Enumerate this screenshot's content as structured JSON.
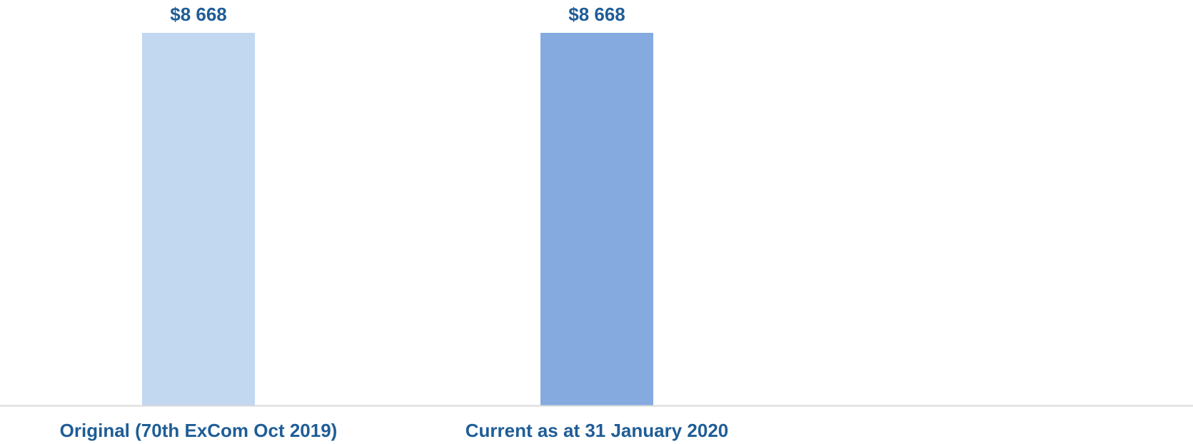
{
  "chart_data": {
    "type": "bar",
    "categories": [
      "Original (70th ExCom Oct 2019)",
      "Current as at 31 January 2020"
    ],
    "values": [
      8668,
      8668
    ],
    "data_labels": [
      "$8 668",
      "$8 668"
    ],
    "colors": [
      "#c2d7f0",
      "#84aae0"
    ],
    "label_color": "#1f5d96",
    "axis_color": "#d9d9d9",
    "ylim": [
      0,
      8668
    ],
    "grid": false,
    "legend": "none"
  }
}
